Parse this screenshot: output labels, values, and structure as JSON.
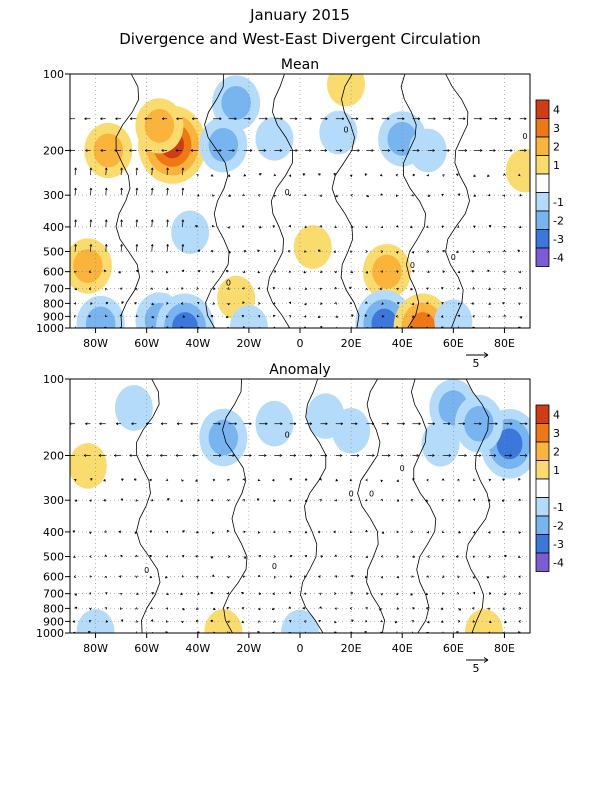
{
  "header": {
    "title_line1": "January 2015",
    "title_line2": "Divergence and West-East Divergent Circulation"
  },
  "colors": {
    "neg4": "#7a5cd6",
    "neg3": "#3c78dc",
    "neg2": "#78b4f0",
    "neg1": "#b4dcfa",
    "pos1": "#fadc6e",
    "pos2": "#fab43c",
    "pos3": "#f07814",
    "pos4": "#d23c14"
  },
  "chart_data": [
    {
      "type": "heatmap",
      "panel_title": "Mean",
      "x_ticks": [
        "80W",
        "60W",
        "40W",
        "20W",
        "0",
        "20E",
        "40E",
        "60E",
        "80E"
      ],
      "y_ticks": [
        "100",
        "200",
        "300",
        "400",
        "500",
        "600",
        "700",
        "800",
        "900",
        "1000"
      ],
      "colorbar_labels": [
        "4",
        "3",
        "2",
        "1",
        "-1",
        "-2",
        "-3",
        "-4"
      ],
      "vector_reference": "5",
      "contour_label": "0",
      "blobs": [
        {
          "lon": -50,
          "p": 190,
          "value": 4
        },
        {
          "lon": -75,
          "p": 200,
          "value": 2
        },
        {
          "lon": -55,
          "p": 160,
          "value": 2
        },
        {
          "lon": -30,
          "p": 190,
          "value": -2
        },
        {
          "lon": -25,
          "p": 130,
          "value": -2
        },
        {
          "lon": -10,
          "p": 180,
          "value": -1
        },
        {
          "lon": 15,
          "p": 170,
          "value": -1
        },
        {
          "lon": 40,
          "p": 180,
          "value": -2
        },
        {
          "lon": 18,
          "p": 110,
          "value": 1
        },
        {
          "lon": 50,
          "p": 200,
          "value": -1
        },
        {
          "lon": 88,
          "p": 240,
          "value": 1
        },
        {
          "lon": -83,
          "p": 570,
          "value": 2
        },
        {
          "lon": 5,
          "p": 480,
          "value": 1
        },
        {
          "lon": 34,
          "p": 600,
          "value": 2
        },
        {
          "lon": -25,
          "p": 760,
          "value": 1
        },
        {
          "lon": -43,
          "p": 420,
          "value": -1
        },
        {
          "lon": -78,
          "p": 960,
          "value": -2
        },
        {
          "lon": -55,
          "p": 930,
          "value": -2
        },
        {
          "lon": -45,
          "p": 990,
          "value": -3
        },
        {
          "lon": -20,
          "p": 990,
          "value": -1
        },
        {
          "lon": 33,
          "p": 960,
          "value": -3
        },
        {
          "lon": 48,
          "p": 990,
          "value": 3
        },
        {
          "lon": 60,
          "p": 940,
          "value": -1
        }
      ]
    },
    {
      "type": "heatmap",
      "panel_title": "Anomaly",
      "x_ticks": [
        "80W",
        "60W",
        "40W",
        "20W",
        "0",
        "20E",
        "40E",
        "60E",
        "80E"
      ],
      "y_ticks": [
        "100",
        "200",
        "300",
        "400",
        "500",
        "600",
        "700",
        "800",
        "900",
        "1000"
      ],
      "colorbar_labels": [
        "4",
        "3",
        "2",
        "1",
        "-1",
        "-2",
        "-3",
        "-4"
      ],
      "vector_reference": "5",
      "contour_label": "0",
      "blobs": [
        {
          "lon": -83,
          "p": 220,
          "value": 1
        },
        {
          "lon": -65,
          "p": 130,
          "value": -1
        },
        {
          "lon": -30,
          "p": 170,
          "value": -2
        },
        {
          "lon": -10,
          "p": 150,
          "value": -1
        },
        {
          "lon": 10,
          "p": 140,
          "value": -1
        },
        {
          "lon": 20,
          "p": 160,
          "value": -1
        },
        {
          "lon": 60,
          "p": 130,
          "value": -2
        },
        {
          "lon": 82,
          "p": 180,
          "value": -3
        },
        {
          "lon": 70,
          "p": 150,
          "value": -2
        },
        {
          "lon": 55,
          "p": 180,
          "value": -1
        },
        {
          "lon": 72,
          "p": 990,
          "value": 1
        },
        {
          "lon": -80,
          "p": 990,
          "value": -1
        },
        {
          "lon": 0,
          "p": 995,
          "value": -1
        },
        {
          "lon": -30,
          "p": 990,
          "value": 1
        }
      ]
    }
  ]
}
